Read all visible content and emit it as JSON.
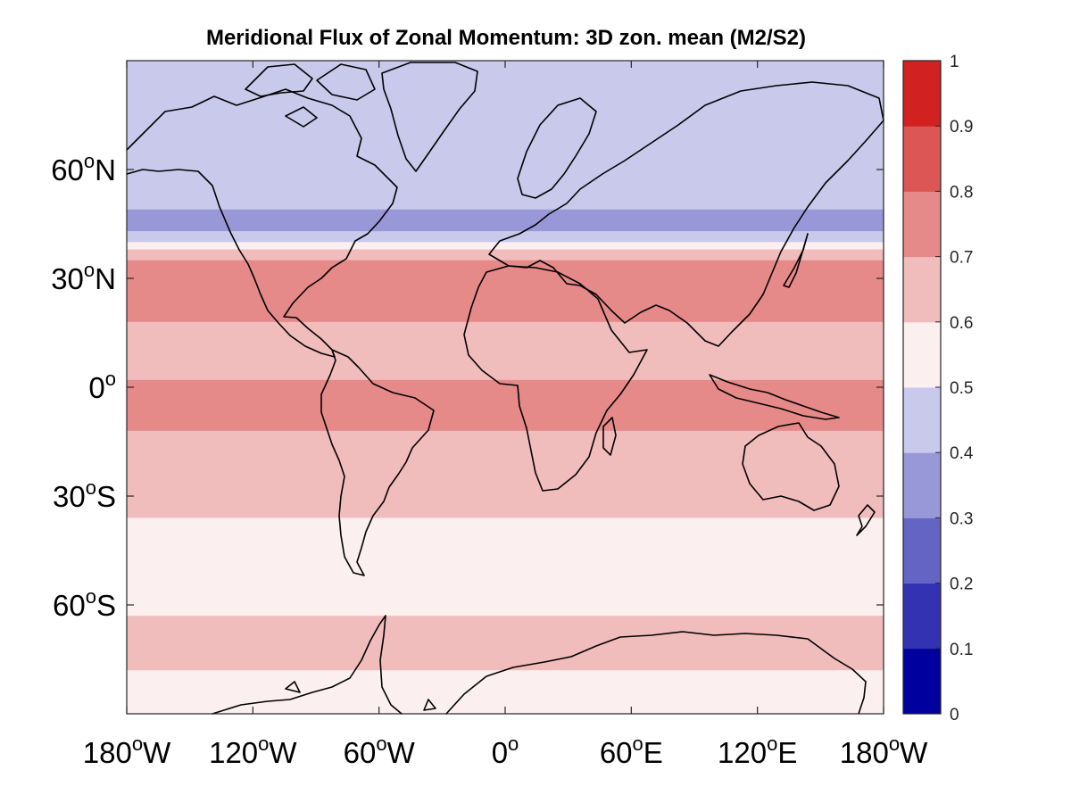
{
  "title": "Meridional Flux of Zonal Momentum: 3D zon. mean (M2/S2)",
  "map": {
    "lon_range": [
      -180,
      180
    ],
    "lat_range": [
      -90,
      90
    ],
    "y_ticks": [
      {
        "lat": 60,
        "deg": "60",
        "sup": "o",
        "hem": "N"
      },
      {
        "lat": 30,
        "deg": "30",
        "sup": "o",
        "hem": "N"
      },
      {
        "lat": 0,
        "deg": "0",
        "sup": "o",
        "hem": ""
      },
      {
        "lat": -30,
        "deg": "30",
        "sup": "o",
        "hem": "S"
      },
      {
        "lat": -60,
        "deg": "60",
        "sup": "o",
        "hem": "S"
      }
    ],
    "x_ticks": [
      {
        "lon": -180,
        "deg": "180",
        "sup": "o",
        "hem": "W"
      },
      {
        "lon": -120,
        "deg": "120",
        "sup": "o",
        "hem": "W"
      },
      {
        "lon": -60,
        "deg": "60",
        "sup": "o",
        "hem": "W"
      },
      {
        "lon": 0,
        "deg": "0",
        "sup": "o",
        "hem": ""
      },
      {
        "lon": 60,
        "deg": "60",
        "sup": "o",
        "hem": "E"
      },
      {
        "lon": 120,
        "deg": "120",
        "sup": "o",
        "hem": "E"
      },
      {
        "lon": 180,
        "deg": "180",
        "sup": "o",
        "hem": "W"
      }
    ],
    "bands": [
      {
        "lat_min": 49,
        "lat_max": 90,
        "value": 0.45
      },
      {
        "lat_min": 43,
        "lat_max": 49,
        "value": 0.35
      },
      {
        "lat_min": 40,
        "lat_max": 43,
        "value": 0.45
      },
      {
        "lat_min": 38,
        "lat_max": 40,
        "value": 0.55
      },
      {
        "lat_min": 35,
        "lat_max": 38,
        "value": 0.65
      },
      {
        "lat_min": 18,
        "lat_max": 35,
        "value": 0.75
      },
      {
        "lat_min": 2,
        "lat_max": 18,
        "value": 0.65
      },
      {
        "lat_min": -12,
        "lat_max": 2,
        "value": 0.75
      },
      {
        "lat_min": -36,
        "lat_max": -12,
        "value": 0.65
      },
      {
        "lat_min": -63,
        "lat_max": -36,
        "value": 0.55
      },
      {
        "lat_min": -78,
        "lat_max": -63,
        "value": 0.65
      },
      {
        "lat_min": -90,
        "lat_max": -78,
        "value": 0.55
      }
    ]
  },
  "colorbar": {
    "ticks": [
      "0",
      "0.1",
      "0.2",
      "0.3",
      "0.4",
      "0.5",
      "0.6",
      "0.7",
      "0.8",
      "0.9",
      "1"
    ],
    "range": [
      0,
      1
    ],
    "colors": [
      "#00009e",
      "#3232b2",
      "#6464c5",
      "#9898d9",
      "#c9c9ec",
      "#fbefef",
      "#f1bcbc",
      "#e68989",
      "#dc5656",
      "#d12121"
    ]
  }
}
